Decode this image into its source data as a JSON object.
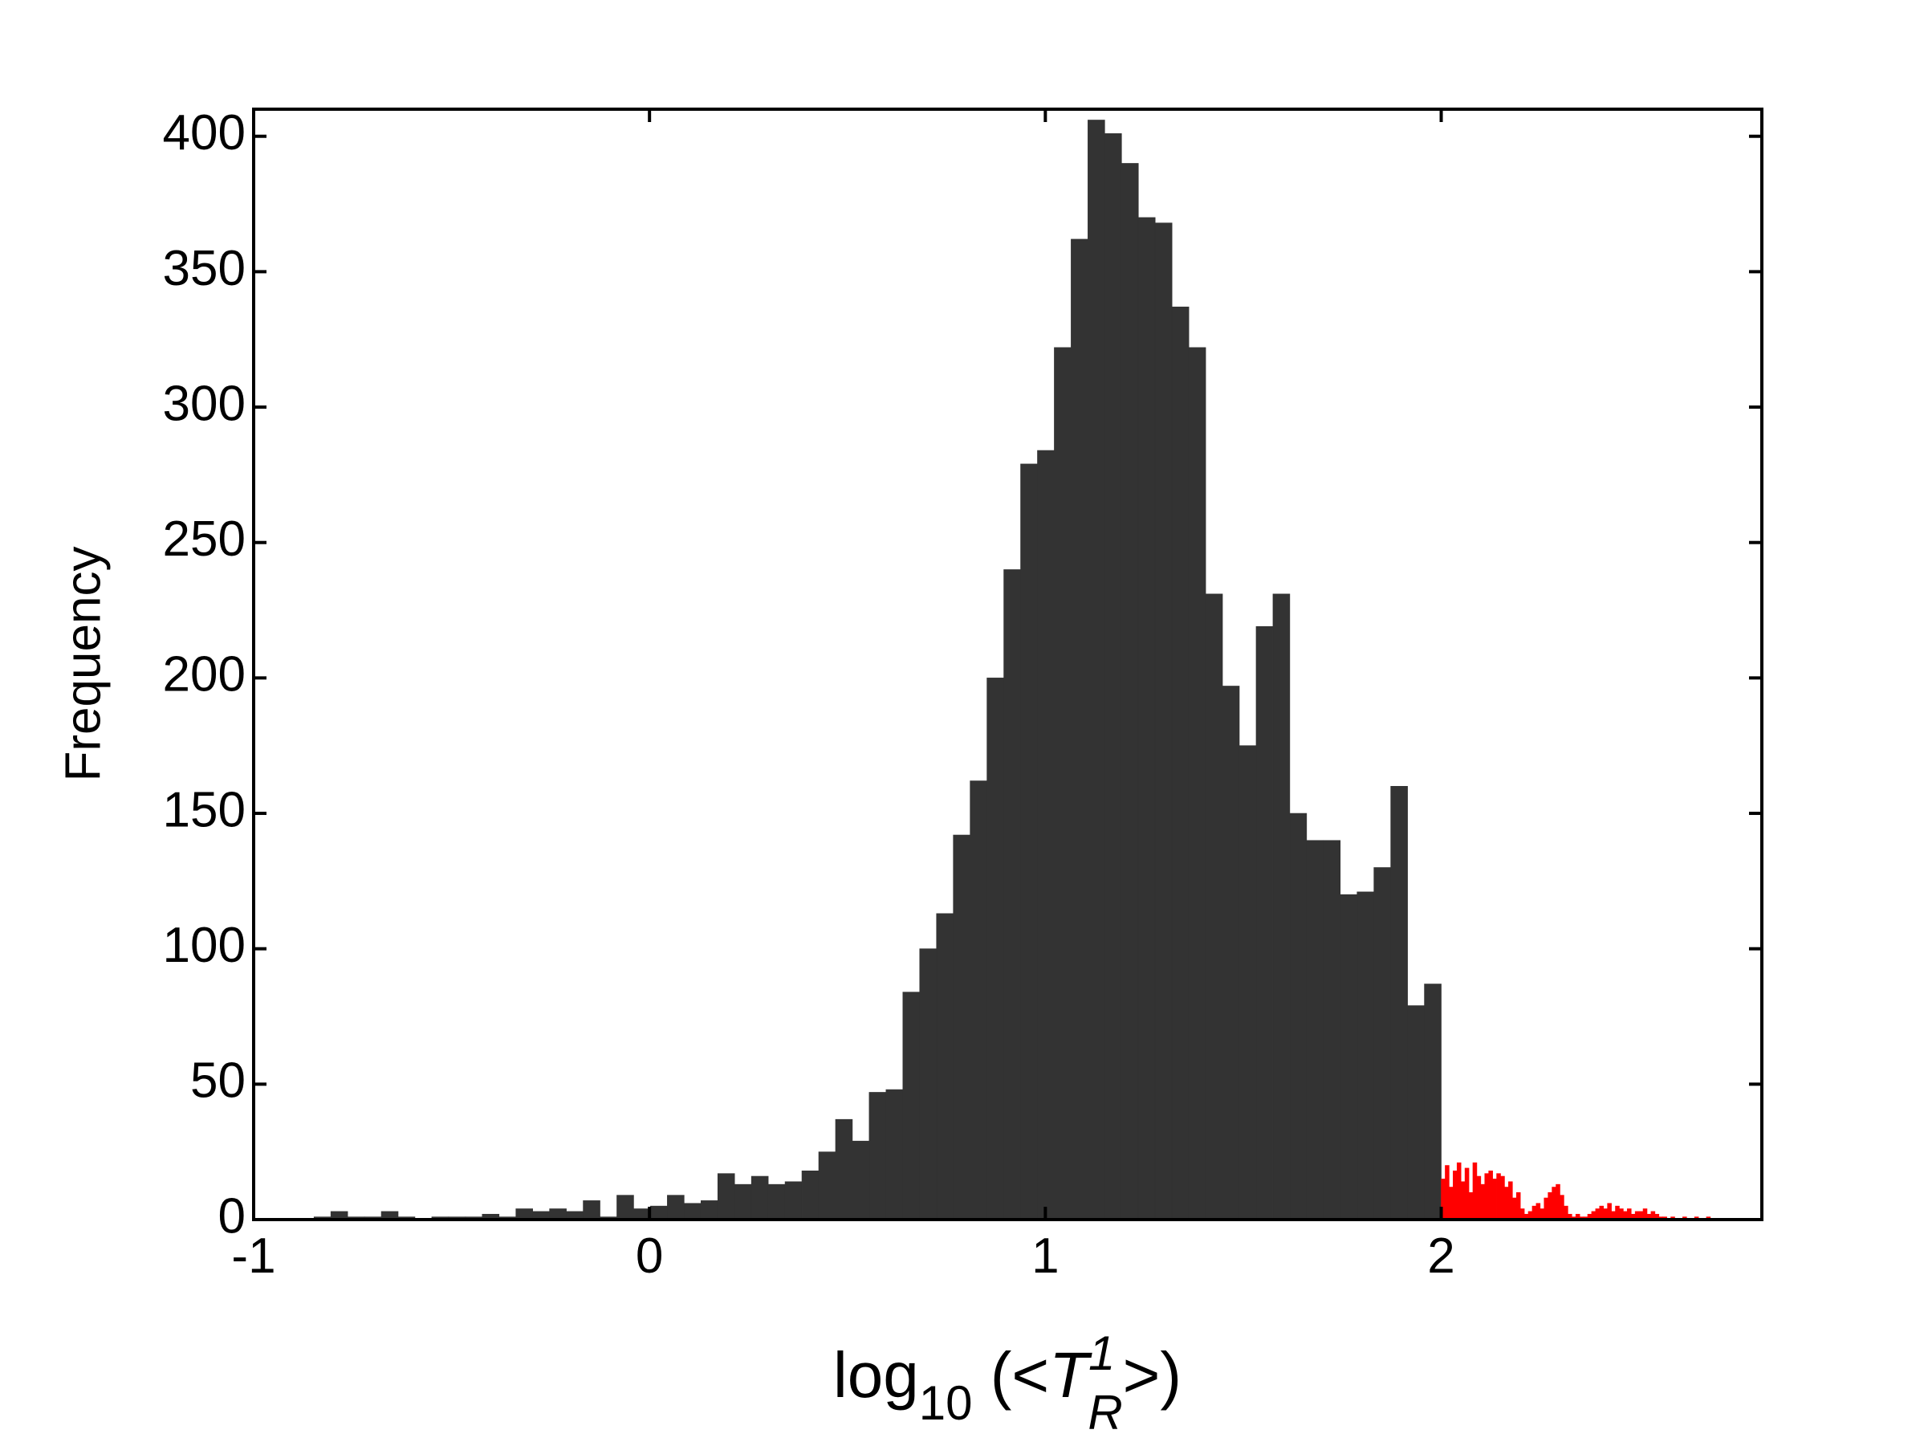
{
  "chart_data": {
    "type": "histogram",
    "xlabel": [
      "log",
      "10",
      " (<",
      "T",
      "1",
      "R",
      ">)"
    ],
    "ylabel": "Frequency",
    "xlim": [
      -1,
      2.81
    ],
    "ylim": [
      0,
      410
    ],
    "xticks": [
      -1,
      0,
      1,
      2
    ],
    "yticks": [
      0,
      50,
      100,
      150,
      200,
      250,
      300,
      350,
      400
    ],
    "grid": false,
    "series": [
      {
        "color": "#333333",
        "bins": [
          -0.975,
          -0.9325,
          -0.89,
          -0.8475,
          -0.805,
          -0.7625,
          -0.72,
          -0.6775,
          -0.635,
          -0.5925,
          -0.55,
          -0.5075,
          -0.465,
          -0.4225,
          -0.38,
          -0.3375,
          -0.295,
          -0.2525,
          -0.21,
          -0.1675,
          -0.125,
          -0.0825,
          -0.04,
          0.0025,
          0.045,
          0.0875,
          0.13,
          0.1725,
          0.215,
          0.2575,
          0.3,
          0.3425,
          0.385,
          0.4275,
          0.47,
          0.5125,
          0.555,
          0.5975,
          0.64,
          0.6825,
          0.725,
          0.7675,
          0.81,
          0.8525,
          0.895,
          0.9375,
          0.98,
          1.0225,
          1.065,
          1.1075,
          1.15,
          1.1925,
          1.235,
          1.2775,
          1.32,
          1.3625,
          1.405,
          1.4475,
          1.49,
          1.5325,
          1.575,
          1.6175,
          1.66,
          1.7025,
          1.745,
          1.7875,
          1.83,
          1.8725,
          1.915,
          1.9575,
          2.0
        ],
        "values": [
          0,
          0,
          0,
          1,
          3,
          1,
          1,
          3,
          1,
          0,
          1,
          1,
          1,
          2,
          1,
          4,
          3,
          4,
          3,
          7,
          1,
          9,
          4,
          5,
          9,
          6,
          7,
          17,
          13,
          16,
          13,
          14,
          18,
          25,
          37,
          29,
          47,
          48,
          84,
          100,
          113,
          142,
          162,
          200,
          240,
          279,
          284,
          322,
          362,
          406,
          401,
          390,
          370,
          368,
          337,
          322,
          231,
          197,
          175,
          219,
          231,
          150,
          140,
          140,
          120,
          121,
          130,
          160,
          79,
          87
        ]
      },
      {
        "color": "#ff0000",
        "bins": [
          2.0,
          2.01,
          2.02,
          2.03,
          2.04,
          2.05,
          2.06,
          2.07,
          2.08,
          2.09,
          2.1,
          2.11,
          2.12,
          2.13,
          2.14,
          2.15,
          2.16,
          2.17,
          2.18,
          2.19,
          2.2,
          2.21,
          2.22,
          2.23,
          2.24,
          2.25,
          2.26,
          2.27,
          2.28,
          2.29,
          2.3,
          2.31,
          2.32,
          2.33,
          2.34,
          2.35,
          2.36,
          2.37,
          2.38,
          2.39,
          2.4,
          2.41,
          2.42,
          2.43,
          2.44,
          2.45,
          2.46,
          2.47,
          2.48,
          2.49,
          2.5,
          2.51,
          2.52,
          2.53,
          2.54,
          2.55,
          2.56,
          2.57,
          2.58,
          2.59,
          2.6,
          2.61,
          2.62,
          2.63,
          2.64,
          2.65,
          2.66,
          2.67,
          2.68,
          2.69,
          2.7
        ],
        "values": [
          15,
          20,
          12,
          18,
          21,
          14,
          19,
          10,
          21,
          16,
          13,
          17,
          18,
          15,
          17,
          16,
          12,
          14,
          8,
          10,
          4,
          2,
          3,
          5,
          6,
          4,
          8,
          10,
          12,
          13,
          9,
          5,
          2,
          1,
          2,
          1,
          1,
          2,
          3,
          4,
          5,
          4,
          6,
          3,
          5,
          4,
          3,
          4,
          2,
          3,
          3,
          4,
          2,
          3,
          2,
          1,
          1,
          0,
          1,
          0,
          0,
          1,
          0,
          0,
          1,
          0,
          0,
          1,
          0,
          0
        ]
      }
    ]
  }
}
